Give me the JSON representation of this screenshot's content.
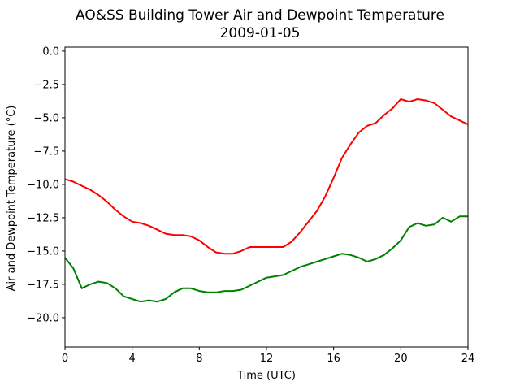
{
  "chart_data": {
    "type": "line",
    "title": "AO&SS Building Tower Air and Dewpoint Temperature",
    "subtitle": "2009-01-05",
    "xlabel": "Time (UTC)",
    "ylabel": "Air and Dewpoint Temperature (°C)",
    "xlim": [
      0,
      24
    ],
    "ylim": [
      -22.2,
      0.3
    ],
    "xticks": [
      0,
      4,
      8,
      12,
      16,
      20,
      24
    ],
    "xtick_labels": [
      "0",
      "4",
      "8",
      "12",
      "16",
      "20",
      "24"
    ],
    "yticks": [
      0.0,
      -2.5,
      -5.0,
      -7.5,
      -10.0,
      -12.5,
      -15.0,
      -17.5,
      -20.0
    ],
    "ytick_labels": [
      "0.0",
      "−2.5",
      "−5.0",
      "−7.5",
      "−10.0",
      "−12.5",
      "−15.0",
      "−17.5",
      "−20.0"
    ],
    "grid": false,
    "legend": false,
    "series": [
      {
        "color": "#ff0000",
        "x": [
          0,
          0.5,
          1,
          1.5,
          2,
          2.5,
          3,
          3.5,
          4,
          4.5,
          5,
          5.5,
          6,
          6.5,
          7,
          7.5,
          8,
          8.5,
          9,
          9.5,
          10,
          10.5,
          11,
          11.5,
          12,
          12.5,
          13,
          13.5,
          14,
          14.5,
          15,
          15.5,
          16,
          16.5,
          17,
          17.5,
          18,
          18.5,
          19,
          19.5,
          20,
          20.5,
          21,
          21.5,
          22,
          22.5,
          23,
          23.5,
          24
        ],
        "y": [
          -9.6,
          -9.8,
          -10.1,
          -10.4,
          -10.8,
          -11.3,
          -11.9,
          -12.4,
          -12.8,
          -12.9,
          -13.1,
          -13.4,
          -13.7,
          -13.8,
          -13.8,
          -13.9,
          -14.2,
          -14.7,
          -15.1,
          -15.2,
          -15.2,
          -15.0,
          -14.7,
          -14.7,
          -14.7,
          -14.7,
          -14.7,
          -14.3,
          -13.6,
          -12.8,
          -12.0,
          -10.9,
          -9.5,
          -8.0,
          -7.0,
          -6.1,
          -5.6,
          -5.4,
          -4.8,
          -4.3,
          -3.6,
          -3.8,
          -3.6,
          -3.7,
          -3.9,
          -4.4,
          -4.9,
          -5.2,
          -5.5
        ]
      },
      {
        "color": "#008000",
        "x": [
          0,
          0.5,
          1,
          1.5,
          2,
          2.5,
          3,
          3.5,
          4,
          4.5,
          5,
          5.5,
          6,
          6.5,
          7,
          7.5,
          8,
          8.5,
          9,
          9.5,
          10,
          10.5,
          11,
          11.5,
          12,
          12.5,
          13,
          13.5,
          14,
          14.5,
          15,
          15.5,
          16,
          16.5,
          17,
          17.5,
          18,
          18.5,
          19,
          19.5,
          20,
          20.5,
          21,
          21.5,
          22,
          22.5,
          23,
          23.5,
          24
        ],
        "y": [
          -15.5,
          -16.3,
          -17.8,
          -17.5,
          -17.3,
          -17.4,
          -17.8,
          -18.4,
          -18.6,
          -18.8,
          -18.7,
          -18.8,
          -18.6,
          -18.1,
          -17.8,
          -17.8,
          -18.0,
          -18.1,
          -18.1,
          -18.0,
          -18.0,
          -17.9,
          -17.6,
          -17.3,
          -17.0,
          -16.9,
          -16.8,
          -16.5,
          -16.2,
          -16.0,
          -15.8,
          -15.6,
          -15.4,
          -15.2,
          -15.3,
          -15.5,
          -15.8,
          -15.6,
          -15.3,
          -14.8,
          -14.2,
          -13.2,
          -12.9,
          -13.1,
          -13.0,
          -12.5,
          -12.8,
          -12.4,
          -12.4
        ]
      }
    ]
  }
}
